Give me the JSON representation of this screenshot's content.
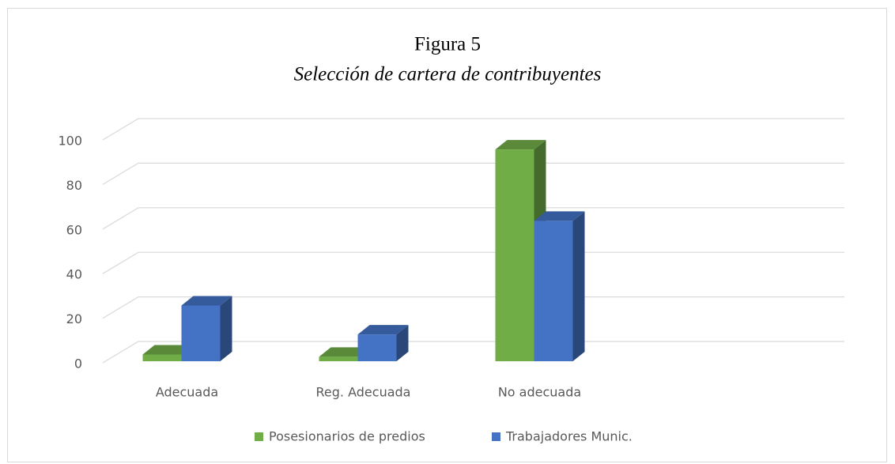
{
  "chart_data": {
    "type": "bar3d",
    "title": "Figura 5",
    "subtitle": "Selección de cartera de contribuyentes",
    "categories": [
      "Adecuada",
      "Reg. Adecuada",
      "No adecuada",
      null
    ],
    "series": [
      {
        "name": "Posesionarios de predios",
        "color": "#70ad47",
        "values": [
          3,
          2,
          95,
          null
        ]
      },
      {
        "name": "Trabajadores Munic.",
        "color": "#4472c4",
        "values": [
          25,
          12,
          63,
          null
        ]
      }
    ],
    "ylim": [
      0,
      100
    ],
    "yticks": [
      0,
      20,
      40,
      60,
      80,
      100
    ],
    "grid": true,
    "legend": "bottom"
  }
}
